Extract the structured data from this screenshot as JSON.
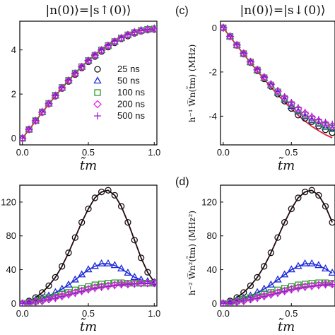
{
  "figure": {
    "titles": [
      "|n(0)⟩=|s↑(0)⟩",
      "|n(0)⟩=|s↓(0)⟩"
    ],
    "panel_labels": [
      "(c)",
      "(d)"
    ],
    "colors": {
      "25 ns": "#111111",
      "50 ns": "#1f2bd6",
      "100 ns": "#2e9a2e",
      "200 ns": "#e629e6",
      "500 ns": "#9922cc",
      "theory": "#e21d3a"
    }
  },
  "chart_data": [
    {
      "id": "a",
      "type": "line",
      "title": "|n(0)⟩=|s↑(0)⟩",
      "xlabel": "t̃m",
      "ylabel": "",
      "xlim": [
        -0.02,
        1.02
      ],
      "ylim": [
        -0.3,
        5.3
      ],
      "xticks": [
        "0.0",
        "0.5",
        "1.0"
      ],
      "yticks": [
        "0",
        "2",
        "4"
      ],
      "legend": [
        "25 ns",
        "50 ns",
        "100 ns",
        "200 ns",
        "500 ns"
      ],
      "legend_position": "lower-right",
      "x": [
        0.0,
        0.05,
        0.1,
        0.15,
        0.2,
        0.25,
        0.3,
        0.35,
        0.4,
        0.45,
        0.5,
        0.55,
        0.6,
        0.65,
        0.7,
        0.75,
        0.8,
        0.85,
        0.9,
        0.95,
        1.0
      ],
      "series": [
        {
          "name": "25 ns",
          "marker": "circle",
          "values": [
            0.0,
            0.4,
            0.8,
            1.17,
            1.55,
            1.9,
            2.25,
            2.57,
            2.88,
            3.18,
            3.46,
            3.7,
            3.93,
            4.13,
            4.32,
            4.5,
            4.63,
            4.75,
            4.84,
            4.9,
            4.92
          ]
        },
        {
          "name": "50 ns",
          "marker": "triangle",
          "values": [
            0.0,
            0.39,
            0.79,
            1.18,
            1.56,
            1.92,
            2.27,
            2.6,
            2.92,
            3.22,
            3.5,
            3.75,
            3.98,
            4.18,
            4.37,
            4.53,
            4.67,
            4.8,
            4.88,
            4.94,
            4.96
          ]
        },
        {
          "name": "100 ns",
          "marker": "square",
          "values": [
            0.0,
            0.4,
            0.8,
            1.19,
            1.58,
            1.95,
            2.3,
            2.62,
            2.95,
            3.24,
            3.52,
            3.76,
            4.0,
            4.2,
            4.38,
            4.54,
            4.68,
            4.79,
            4.88,
            4.93,
            4.95
          ]
        },
        {
          "name": "200 ns",
          "marker": "diamond",
          "values": [
            0.0,
            0.4,
            0.79,
            1.18,
            1.56,
            1.93,
            2.28,
            2.61,
            2.93,
            3.23,
            3.51,
            3.76,
            3.99,
            4.19,
            4.38,
            4.54,
            4.68,
            4.79,
            4.87,
            4.92,
            4.94
          ]
        },
        {
          "name": "500 ns",
          "marker": "plus",
          "values": [
            0.0,
            0.4,
            0.79,
            1.18,
            1.56,
            1.93,
            2.28,
            2.62,
            2.94,
            3.24,
            3.52,
            3.77,
            4.0,
            4.2,
            4.39,
            4.55,
            4.69,
            4.8,
            4.88,
            4.93,
            4.95
          ]
        },
        {
          "name": "",
          "marker": "line",
          "values": [
            0.0,
            0.39,
            0.78,
            1.17,
            1.55,
            1.91,
            2.27,
            2.61,
            2.94,
            3.24,
            3.52,
            3.79,
            4.02,
            4.23,
            4.42,
            4.57,
            4.7,
            4.8,
            4.87,
            4.91,
            4.92
          ]
        }
      ]
    },
    {
      "id": "c",
      "type": "line",
      "title": "|n(0)⟩=|s↓(0)⟩",
      "xlabel": "t̃m",
      "ylabel": "h⁻¹ W̅n(t̃m) (MHz)",
      "xlim": [
        -0.02,
        0.82
      ],
      "ylim": [
        -5.3,
        0.3
      ],
      "xticks": [
        "0.0",
        "0.5"
      ],
      "yticks": [
        "0",
        "-2",
        "-4"
      ],
      "x": [
        0.0,
        0.05,
        0.1,
        0.15,
        0.2,
        0.25,
        0.3,
        0.35,
        0.4,
        0.45,
        0.5,
        0.55,
        0.6,
        0.65,
        0.7,
        0.75,
        0.8
      ],
      "series": [
        {
          "name": "25 ns",
          "marker": "circle",
          "values": [
            0.0,
            -0.4,
            -0.8,
            -1.19,
            -1.58,
            -1.95,
            -2.31,
            -2.65,
            -3.0,
            -3.32,
            -3.65,
            -3.95,
            -4.1,
            -4.25,
            -4.45,
            -4.62,
            -4.75
          ]
        },
        {
          "name": "50 ns",
          "marker": "triangle",
          "values": [
            0.0,
            -0.4,
            -0.79,
            -1.18,
            -1.56,
            -1.93,
            -2.28,
            -2.62,
            -2.95,
            -3.26,
            -3.55,
            -3.8,
            -4.02,
            -4.2,
            -4.36,
            -4.5,
            -4.6
          ]
        },
        {
          "name": "100 ns",
          "marker": "square",
          "values": [
            0.0,
            -0.39,
            -0.78,
            -1.17,
            -1.55,
            -1.91,
            -2.26,
            -2.59,
            -2.9,
            -3.2,
            -3.48,
            -3.73,
            -3.95,
            -4.14,
            -4.3,
            -4.44,
            -4.55
          ]
        },
        {
          "name": "200 ns",
          "marker": "diamond",
          "values": [
            0.0,
            -0.39,
            -0.78,
            -1.16,
            -1.54,
            -1.9,
            -2.24,
            -2.56,
            -2.87,
            -3.16,
            -3.43,
            -3.67,
            -3.88,
            -4.06,
            -4.22,
            -4.34,
            -4.44
          ]
        },
        {
          "name": "500 ns",
          "marker": "plus",
          "values": [
            0.0,
            -0.39,
            -0.77,
            -1.15,
            -1.52,
            -1.88,
            -2.22,
            -2.54,
            -2.84,
            -3.12,
            -3.38,
            -3.61,
            -3.82,
            -4.0,
            -4.15,
            -4.27,
            -4.36
          ]
        },
        {
          "name": "",
          "marker": "line",
          "values": [
            0.0,
            -0.4,
            -0.8,
            -1.19,
            -1.58,
            -1.96,
            -2.33,
            -2.69,
            -3.03,
            -3.36,
            -3.67,
            -3.96,
            -4.22,
            -4.46,
            -4.66,
            -4.84,
            -4.98
          ]
        }
      ]
    },
    {
      "id": "b",
      "type": "line",
      "title": "",
      "xlabel": "t̃m",
      "ylabel": "",
      "xlim": [
        -0.02,
        1.02
      ],
      "ylim": [
        -3,
        140
      ],
      "xticks": [
        "0.0",
        "0.5",
        "1.0"
      ],
      "yticks": [
        "0",
        "40",
        "80",
        "120"
      ],
      "x": [
        0.0,
        0.05,
        0.1,
        0.15,
        0.2,
        0.25,
        0.3,
        0.35,
        0.4,
        0.45,
        0.5,
        0.55,
        0.6,
        0.65,
        0.7,
        0.75,
        0.8,
        0.85,
        0.9,
        0.95,
        1.0
      ],
      "series": [
        {
          "name": "25 ns",
          "marker": "circle",
          "values": [
            0,
            3,
            7,
            13,
            21,
            31,
            44,
            60,
            78,
            96,
            112,
            125,
            132,
            134,
            128,
            115,
            96,
            75,
            54,
            37,
            25
          ]
        },
        {
          "name": "50 ns",
          "marker": "triangle",
          "values": [
            0,
            2,
            4,
            6,
            9,
            13,
            17,
            22,
            28,
            34,
            40,
            44,
            47,
            47,
            45,
            41,
            36,
            31,
            28,
            26,
            25
          ]
        },
        {
          "name": "100 ns",
          "marker": "square",
          "values": [
            0,
            1,
            3,
            5,
            7,
            9,
            11,
            13,
            16,
            18,
            20,
            22,
            23,
            24,
            24.5,
            24.5,
            24,
            24,
            24,
            24,
            24
          ]
        },
        {
          "name": "200 ns",
          "marker": "diamond",
          "values": [
            0,
            1,
            2,
            3,
            5,
            7,
            9,
            11,
            13,
            15,
            17,
            19,
            20,
            21,
            22,
            23,
            23,
            23.5,
            24,
            24,
            24
          ]
        },
        {
          "name": "500 ns",
          "marker": "plus",
          "values": [
            0,
            0.5,
            1.5,
            3,
            4.5,
            6,
            8,
            10,
            12,
            14,
            16,
            17.5,
            19,
            20,
            21,
            22,
            22.5,
            23,
            23.5,
            24,
            24
          ]
        },
        {
          "name": "",
          "marker": "line",
          "values": [
            0,
            3,
            7,
            13,
            21,
            31,
            44,
            60,
            78,
            96,
            112,
            125,
            132,
            134,
            128,
            115,
            96,
            75,
            54,
            37,
            25
          ]
        }
      ]
    },
    {
      "id": "d",
      "type": "line",
      "title": "",
      "xlabel": "t̃m",
      "ylabel": "h⁻² W̅n²(t̃m) (MHz²)",
      "xlim": [
        -0.02,
        0.82
      ],
      "ylim": [
        -3,
        140
      ],
      "xticks": [
        "0.0",
        "0.5"
      ],
      "yticks": [
        "0",
        "40",
        "80",
        "120"
      ],
      "x": [
        0.0,
        0.05,
        0.1,
        0.15,
        0.2,
        0.25,
        0.3,
        0.35,
        0.4,
        0.45,
        0.5,
        0.55,
        0.6,
        0.65,
        0.7,
        0.75,
        0.8
      ],
      "series": [
        {
          "name": "25 ns",
          "marker": "circle",
          "values": [
            0,
            3,
            7,
            13,
            21,
            31,
            44,
            60,
            78,
            96,
            112,
            125,
            132,
            134,
            128,
            115,
            96
          ]
        },
        {
          "name": "50 ns",
          "marker": "triangle",
          "values": [
            0,
            2,
            4,
            6,
            9,
            13,
            17,
            22,
            28,
            34,
            40,
            44,
            47,
            47,
            45,
            41,
            36
          ]
        },
        {
          "name": "100 ns",
          "marker": "square",
          "values": [
            0,
            1,
            3,
            5,
            7,
            9,
            11,
            13,
            16,
            18,
            20,
            22,
            23,
            24,
            24.5,
            24.5,
            24
          ]
        },
        {
          "name": "200 ns",
          "marker": "diamond",
          "values": [
            0,
            1,
            2,
            3,
            5,
            7,
            9,
            11,
            13,
            15,
            17,
            19,
            20,
            21,
            22,
            23,
            23
          ]
        },
        {
          "name": "500 ns",
          "marker": "plus",
          "values": [
            0,
            0.5,
            1.5,
            3,
            4.5,
            6,
            8,
            10,
            12,
            14,
            16,
            17.5,
            19,
            20,
            21,
            22,
            22.5
          ]
        },
        {
          "name": "",
          "marker": "line",
          "values": [
            0,
            3,
            7,
            13,
            21,
            31,
            44,
            60,
            78,
            96,
            112,
            125,
            132,
            134,
            128,
            115,
            96
          ]
        }
      ]
    }
  ]
}
